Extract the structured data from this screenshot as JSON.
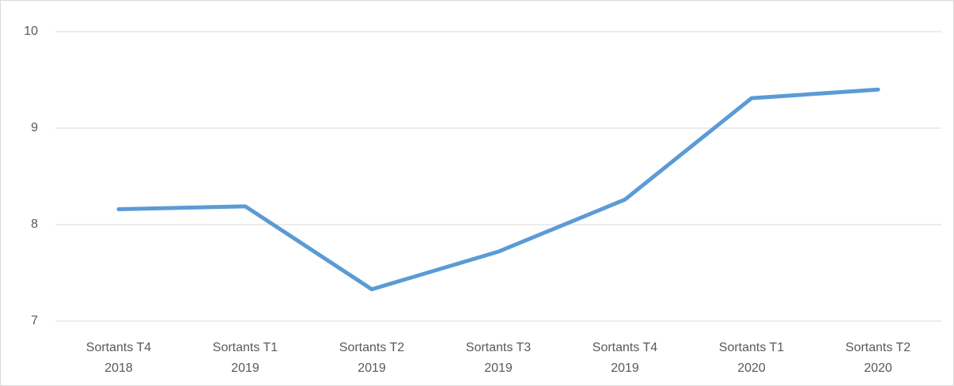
{
  "chart_data": {
    "type": "line",
    "categories": [
      "Sortants T4\n2018",
      "Sortants T1\n2019",
      "Sortants T2\n2019",
      "Sortants T3\n2019",
      "Sortants T4\n2019",
      "Sortants T1\n2020",
      "Sortants T2\n2020"
    ],
    "series": [
      {
        "color": "#5b9bd5",
        "values": [
          8.16,
          8.19,
          7.33,
          7.72,
          8.26,
          9.31,
          9.4
        ]
      }
    ],
    "ylim": [
      7,
      10
    ],
    "yticks": [
      7,
      8,
      9,
      10
    ],
    "grid": true
  }
}
